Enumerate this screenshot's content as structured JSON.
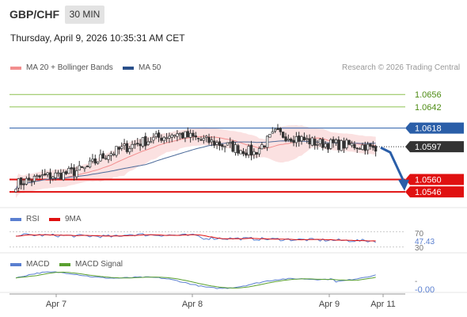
{
  "header": {
    "symbol": "GBP/CHF",
    "timeframe": "30 MIN",
    "datetime": "Thursday, April 9, 2026 10:35:31 AM CET"
  },
  "legend": {
    "ma20_bb": "MA 20 + Bollinger Bands",
    "ma50": "MA 50",
    "credit": "Research © 2026 Trading Central",
    "rsi": "RSI",
    "rsi_ma": "9MA",
    "macd": "MACD",
    "macd_signal": "MACD Signal"
  },
  "colors": {
    "candle": "#333333",
    "bollinger_fill": "#fadcdc",
    "ma20": "#f28e8e",
    "ma50": "#4d6b9a",
    "resistance": "#8cc04f",
    "resistance_text": "#4e8c14",
    "pivot": "#2a5ea8",
    "support": "#e01010",
    "rsi": "#5a7fd0",
    "rsi_ma": "#e01010",
    "macd": "#5a7fd0",
    "macd_signal": "#5aa030",
    "arrow": "#2a5ea8"
  },
  "chart_data": [
    {
      "type": "candlestick",
      "title": "GBP/CHF",
      "ylim": [
        1.053,
        1.0675
      ],
      "x_tick_labels": [
        "Apr 7",
        "Apr 8",
        "Apr 9",
        "Apr 11"
      ],
      "current_price": "1.0597",
      "levels": [
        {
          "value": 1.0656,
          "label": "1.0656",
          "kind": "resistance"
        },
        {
          "value": 1.0642,
          "label": "1.0642",
          "kind": "resistance"
        },
        {
          "value": 1.0618,
          "label": "1.0618",
          "kind": "pivot"
        },
        {
          "value": 1.056,
          "label": "1.0560",
          "kind": "support"
        },
        {
          "value": 1.0546,
          "label": "1.0546",
          "kind": "support"
        }
      ],
      "forecast_arrow": {
        "from": 1.0596,
        "to": 1.0549
      }
    },
    {
      "type": "line",
      "title": "RSI",
      "series": [
        {
          "name": "RSI"
        },
        {
          "name": "9MA"
        }
      ],
      "ylim": [
        25,
        75
      ],
      "y_tick_labels": [
        "70",
        "30"
      ],
      "current_value": "47.43"
    },
    {
      "type": "line",
      "title": "MACD",
      "series": [
        {
          "name": "MACD"
        },
        {
          "name": "MACD Signal"
        }
      ],
      "current_value": "-0.00",
      "y_tick_labels": [
        "-"
      ]
    }
  ]
}
